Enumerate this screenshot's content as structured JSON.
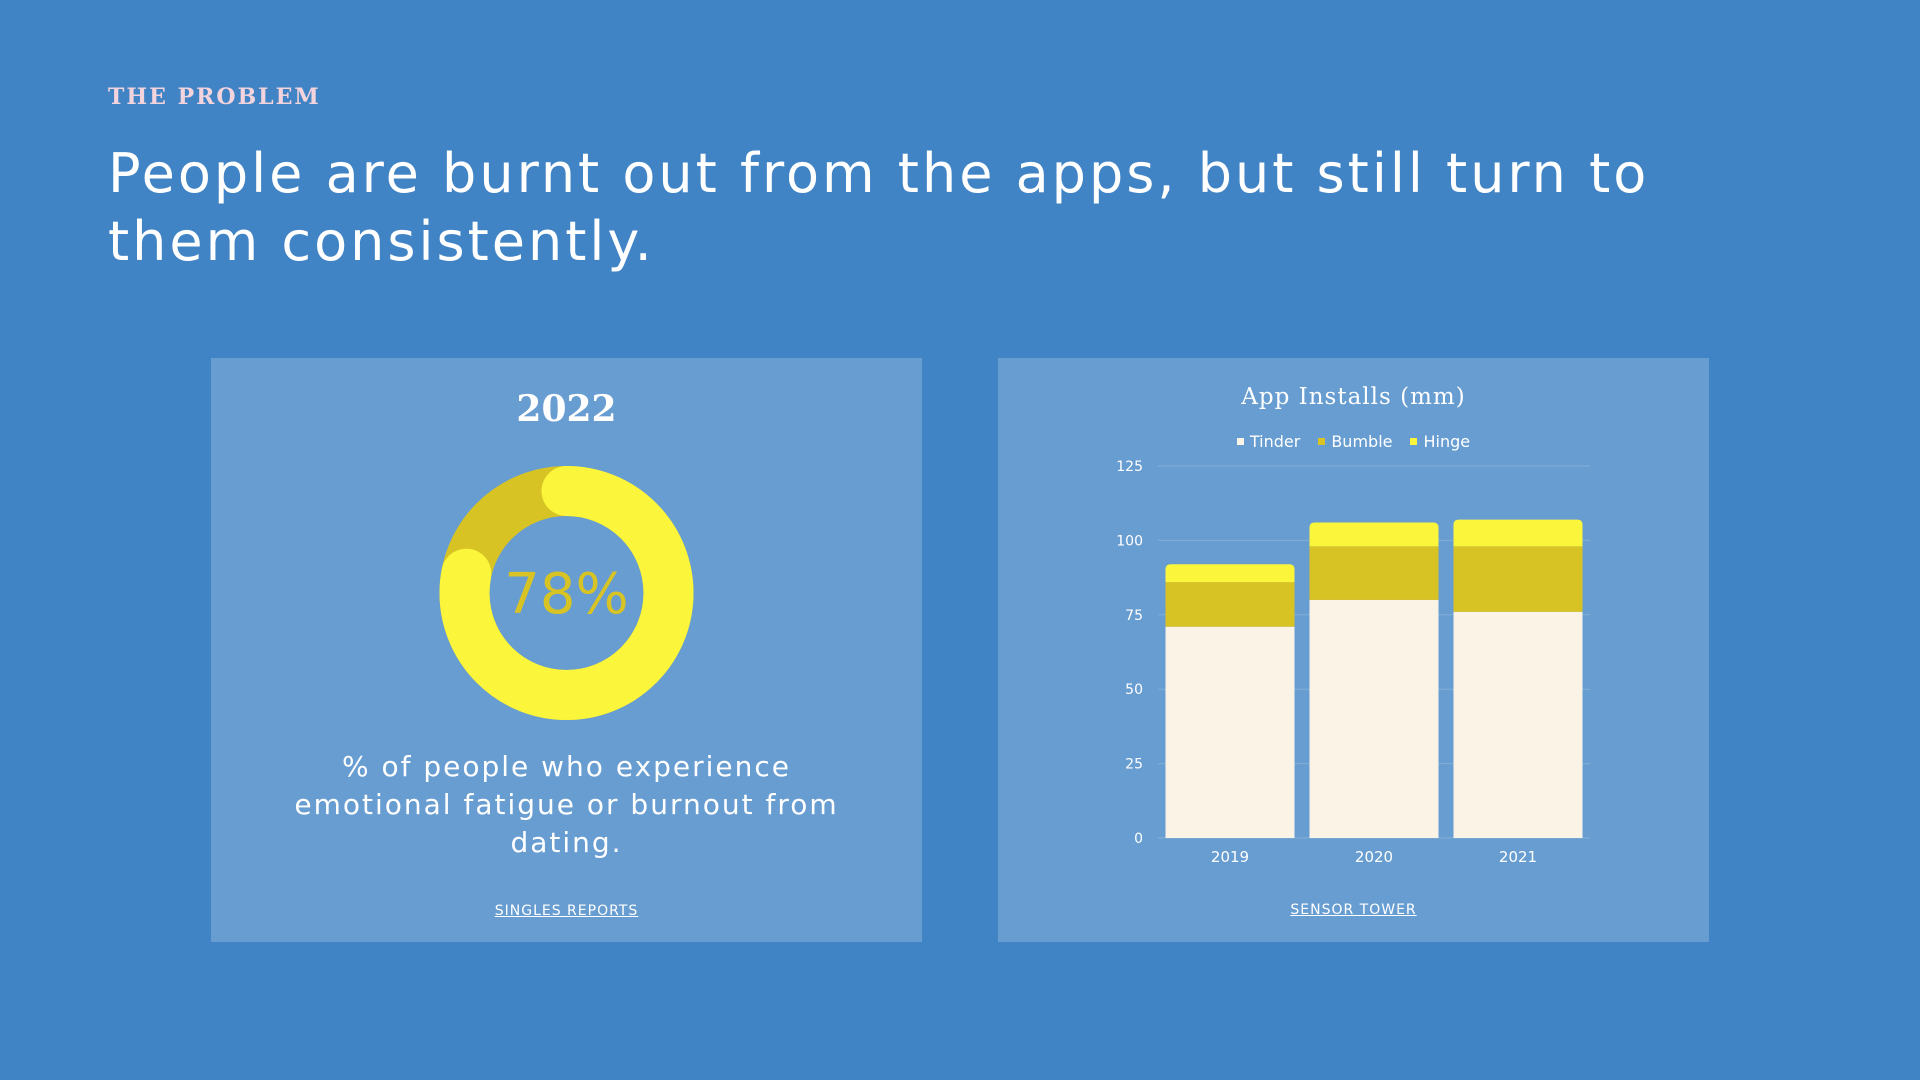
{
  "slide": {
    "eyebrow": "THE PROBLEM",
    "headline": "People are burnt out from the apps, but still turn to them consistently."
  },
  "left_card": {
    "year": "2022",
    "percent_label": "78%",
    "percent_value": 78,
    "caption": "% of people who experience emotional fatigue or burnout from dating.",
    "source": "SINGLES REPORTS"
  },
  "right_card": {
    "source": "SENSOR TOWER"
  },
  "colors": {
    "background": "#4184c5",
    "card": "#689dd1",
    "tinder": "#fbf3e6",
    "bumble": "#d8c324",
    "hinge": "#fbf63c",
    "donut_main": "#fbf63c",
    "donut_rest": "#d8c324",
    "percent_text": "#d8c324"
  },
  "chart_data": [
    {
      "type": "pie",
      "title": "2022",
      "values": [
        78,
        22
      ],
      "data_label": "78%"
    },
    {
      "type": "bar",
      "stacked": true,
      "title": "App Installs (mm)",
      "categories": [
        "2019",
        "2020",
        "2021"
      ],
      "series": [
        {
          "name": "Tinder",
          "values": [
            71,
            80,
            76
          ]
        },
        {
          "name": "Bumble",
          "values": [
            15,
            18,
            22
          ]
        },
        {
          "name": "Hinge",
          "values": [
            6,
            8,
            9
          ]
        }
      ],
      "ylim": [
        0,
        125
      ],
      "yticks": [
        0,
        25,
        50,
        75,
        100,
        125
      ],
      "grid": true,
      "legend": "top-center"
    }
  ]
}
